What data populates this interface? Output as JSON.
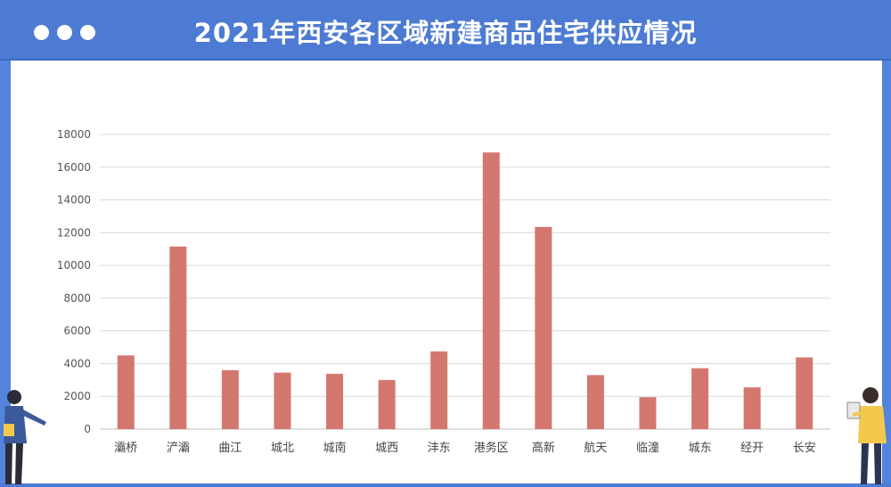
{
  "header": {
    "title": "2021年西安各区域新建商品住宅供应情况"
  },
  "colors": {
    "header_bg": "#4d7bd3",
    "panel_bg": "#ffffff",
    "bar": "#d4776f",
    "grid": "#d9d9d9"
  },
  "chart_data": {
    "type": "bar",
    "title": "2021年西安各区域新建商品住宅供应情况",
    "xlabel": "",
    "ylabel": "",
    "ylim": [
      0,
      18000
    ],
    "yticks": [
      0,
      2000,
      4000,
      6000,
      8000,
      10000,
      12000,
      14000,
      16000,
      18000
    ],
    "grid": true,
    "legend": "none",
    "categories": [
      "灞桥",
      "浐灞",
      "曲江",
      "城北",
      "城南",
      "城西",
      "沣东",
      "港务区",
      "高新",
      "航天",
      "临潼",
      "城东",
      "经开",
      "长安"
    ],
    "values": [
      4500,
      11150,
      3600,
      3450,
      3380,
      3000,
      4750,
      16900,
      12350,
      3300,
      1950,
      3720,
      2550,
      4380
    ]
  }
}
